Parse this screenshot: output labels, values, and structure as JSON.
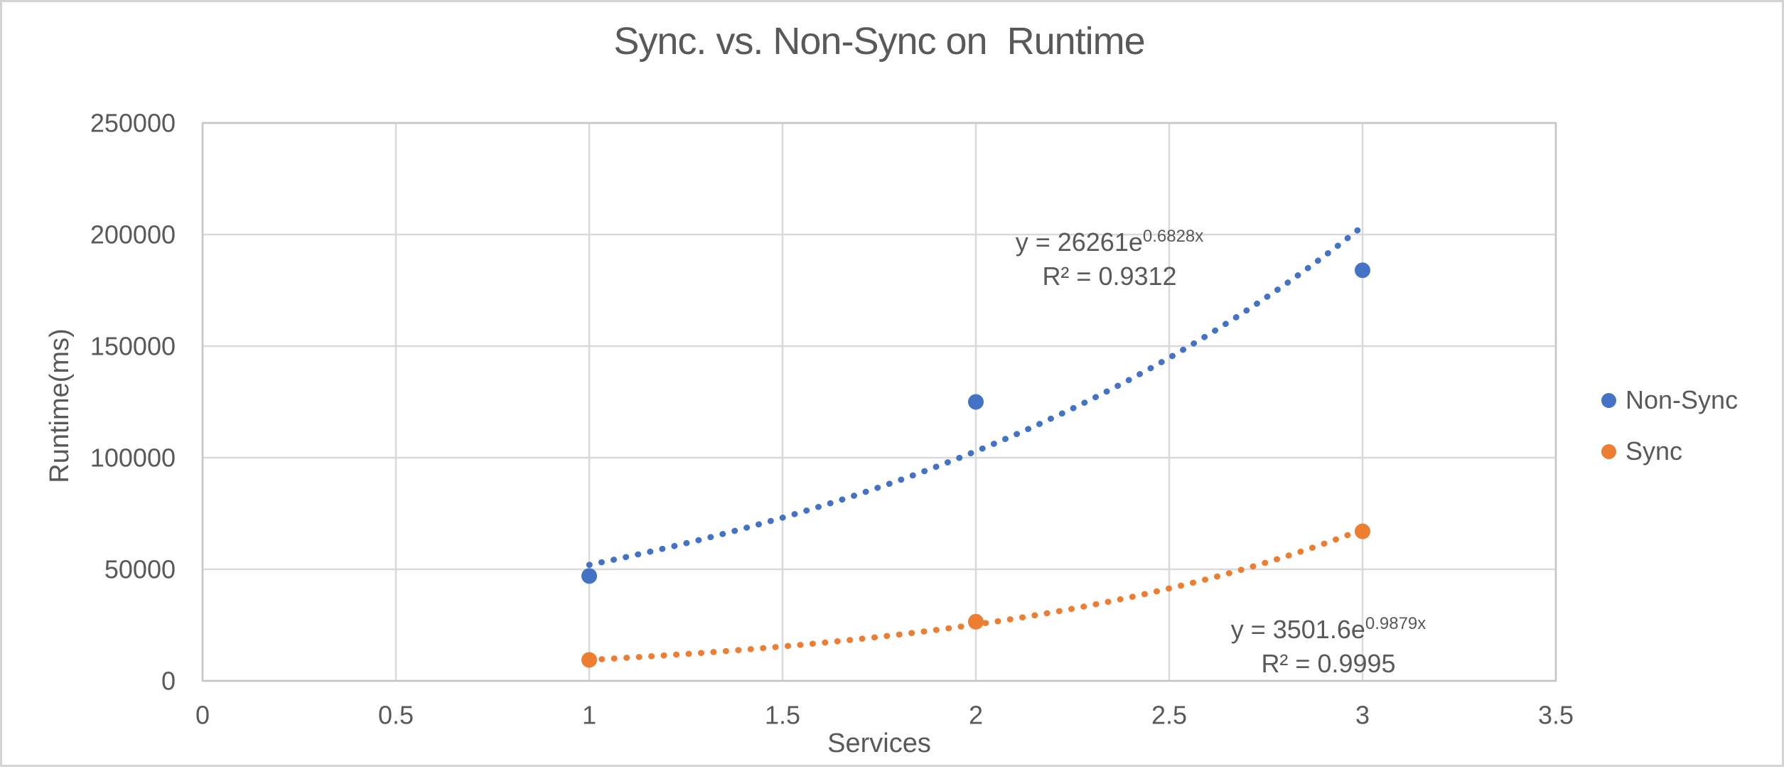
{
  "chart_data": {
    "type": "scatter",
    "title": "Sync. vs. Non-Sync on  Runtime",
    "xlabel": "Services",
    "ylabel": "Runtime(ms)",
    "xlim": [
      0,
      3.5
    ],
    "ylim": [
      0,
      250000
    ],
    "x_ticks": [
      "0",
      "0.5",
      "1",
      "1.5",
      "2",
      "2.5",
      "3",
      "3.5"
    ],
    "y_ticks": [
      "0",
      "50000",
      "100000",
      "150000",
      "200000",
      "250000"
    ],
    "grid": true,
    "legend_position": "right",
    "x": [
      1,
      2,
      3
    ],
    "series": [
      {
        "name": "Non-Sync",
        "color": "#4472C4",
        "values": [
          47000,
          125000,
          184000
        ],
        "trendline": {
          "type": "exponential",
          "a": 26261,
          "b": 0.6828,
          "x_range": [
            1,
            3
          ],
          "equation_base": "y = 26261e",
          "equation_exponent": "0.6828x",
          "r_squared_label": "R² = 0.9312"
        }
      },
      {
        "name": "Sync",
        "color": "#ED7D31",
        "values": [
          9400,
          26500,
          67000
        ],
        "trendline": {
          "type": "exponential",
          "a": 3501.6,
          "b": 0.9879,
          "x_range": [
            1,
            3
          ],
          "equation_base": "y = 3501.6e",
          "equation_exponent": "0.9879x",
          "r_squared_label": "R² = 0.9995"
        }
      }
    ],
    "style": {
      "text_color": "#595959",
      "gridline_color": "#d9d9d9",
      "plot_border_color": "#c6c6c6"
    }
  }
}
